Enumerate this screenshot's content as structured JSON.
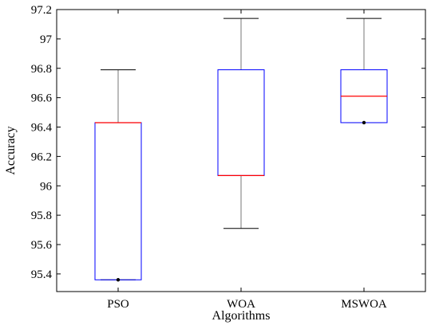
{
  "chart_data": {
    "type": "box",
    "title": "",
    "xlabel": "Algorithms",
    "ylabel": "Accuracy",
    "ylim": [
      95.28,
      97.2
    ],
    "yticks": [
      95.4,
      95.6,
      95.8,
      96,
      96.2,
      96.4,
      96.6,
      96.8,
      97,
      97.2
    ],
    "ytick_labels": [
      "95.4",
      "95.6",
      "95.8",
      "96",
      "96.2",
      "96.4",
      "96.6",
      "96.8",
      "97",
      "97.2"
    ],
    "grid": false,
    "categories": [
      "PSO",
      "WOA",
      "MSWOA"
    ],
    "boxes": [
      {
        "name": "PSO",
        "min": 95.36,
        "q1": 95.36,
        "median": 96.43,
        "q3": 96.43,
        "max": 96.79,
        "outliers": [
          95.36
        ]
      },
      {
        "name": "WOA",
        "min": 95.71,
        "q1": 96.07,
        "median": 96.07,
        "q3": 96.79,
        "max": 97.14,
        "outliers": []
      },
      {
        "name": "MSWOA",
        "min": 96.43,
        "q1": 96.43,
        "median": 96.61,
        "q3": 96.79,
        "max": 97.14,
        "outliers": [
          96.43
        ]
      }
    ],
    "colors": {
      "box": "#0000ff",
      "median": "#ff0000",
      "whisker": "#000000",
      "outlier": "#000000",
      "axes": "#000000"
    }
  }
}
